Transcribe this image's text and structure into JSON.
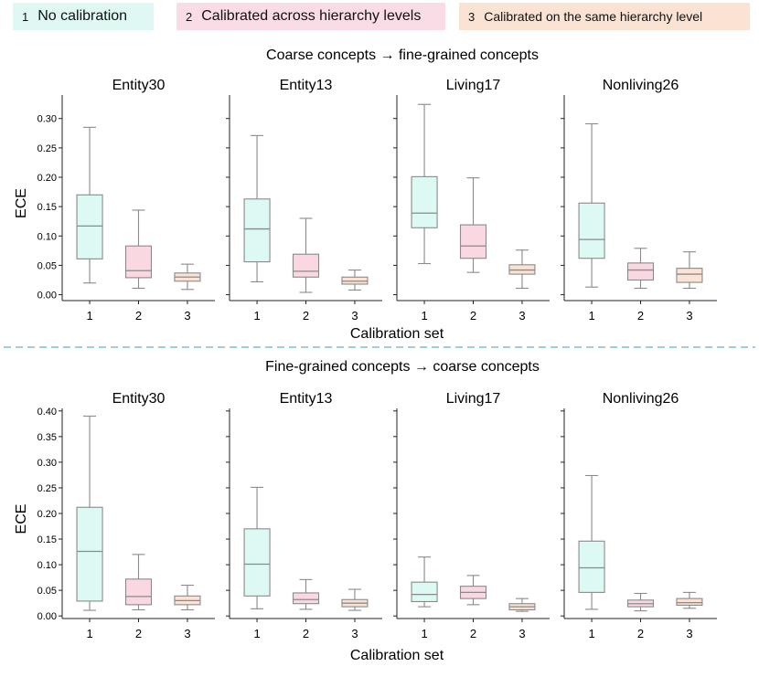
{
  "legend": [
    {
      "num": "1",
      "label": "No calibration",
      "fill": "#dff8f3"
    },
    {
      "num": "2",
      "label": "Calibrated across hierarchy levels",
      "fill": "#fadce6"
    },
    {
      "num": "3",
      "label": "Calibrated on the same hierarchy level",
      "fill": "#fbe3d3"
    }
  ],
  "colors": {
    "box_fills": [
      "#dcf9f3",
      "#fad8e2",
      "#fae3d4"
    ],
    "stroke": "#8a8a8a",
    "axis": "#222222",
    "divider": "#9ccfe0"
  },
  "shared": {
    "xlabel": "Calibration set",
    "ylabel": "ECE"
  },
  "chart_data": [
    {
      "type": "box",
      "section_title": "Coarse concepts → fine-grained concepts",
      "ylim": [
        -0.01,
        0.34
      ],
      "yticks": [
        "0.00",
        "0.05",
        "0.10",
        "0.15",
        "0.20",
        "0.25",
        "0.30"
      ],
      "categories": [
        "1",
        "2",
        "3"
      ],
      "panels": [
        {
          "title": "Entity30",
          "boxes": [
            {
              "min": 0.02,
              "q1": 0.061,
              "median": 0.117,
              "q3": 0.17,
              "max": 0.285
            },
            {
              "min": 0.011,
              "q1": 0.029,
              "median": 0.041,
              "q3": 0.083,
              "max": 0.144
            },
            {
              "min": 0.009,
              "q1": 0.023,
              "median": 0.03,
              "q3": 0.037,
              "max": 0.052
            }
          ]
        },
        {
          "title": "Entity13",
          "boxes": [
            {
              "min": 0.022,
              "q1": 0.056,
              "median": 0.112,
              "q3": 0.163,
              "max": 0.271
            },
            {
              "min": 0.004,
              "q1": 0.03,
              "median": 0.04,
              "q3": 0.069,
              "max": 0.13
            },
            {
              "min": 0.008,
              "q1": 0.018,
              "median": 0.023,
              "q3": 0.03,
              "max": 0.042
            }
          ]
        },
        {
          "title": "Living17",
          "boxes": [
            {
              "min": 0.053,
              "q1": 0.114,
              "median": 0.139,
              "q3": 0.201,
              "max": 0.324
            },
            {
              "min": 0.038,
              "q1": 0.062,
              "median": 0.083,
              "q3": 0.119,
              "max": 0.199
            },
            {
              "min": 0.011,
              "q1": 0.035,
              "median": 0.042,
              "q3": 0.051,
              "max": 0.076
            }
          ]
        },
        {
          "title": "Nonliving26",
          "boxes": [
            {
              "min": 0.013,
              "q1": 0.062,
              "median": 0.094,
              "q3": 0.156,
              "max": 0.291
            },
            {
              "min": 0.011,
              "q1": 0.025,
              "median": 0.042,
              "q3": 0.054,
              "max": 0.079
            },
            {
              "min": 0.011,
              "q1": 0.021,
              "median": 0.035,
              "q3": 0.045,
              "max": 0.073
            }
          ]
        }
      ]
    },
    {
      "type": "box",
      "section_title": "Fine-grained concepts → coarse concepts",
      "ylim": [
        -0.005,
        0.405
      ],
      "yticks": [
        "0.00",
        "0.05",
        "0.10",
        "0.15",
        "0.20",
        "0.25",
        "0.30",
        "0.35",
        "0.40"
      ],
      "categories": [
        "1",
        "2",
        "3"
      ],
      "panels": [
        {
          "title": "Entity30",
          "boxes": [
            {
              "min": 0.011,
              "q1": 0.029,
              "median": 0.126,
              "q3": 0.212,
              "max": 0.39
            },
            {
              "min": 0.012,
              "q1": 0.022,
              "median": 0.038,
              "q3": 0.072,
              "max": 0.12
            },
            {
              "min": 0.012,
              "q1": 0.022,
              "median": 0.03,
              "q3": 0.039,
              "max": 0.06
            }
          ]
        },
        {
          "title": "Entity13",
          "boxes": [
            {
              "min": 0.014,
              "q1": 0.039,
              "median": 0.101,
              "q3": 0.17,
              "max": 0.251
            },
            {
              "min": 0.013,
              "q1": 0.024,
              "median": 0.032,
              "q3": 0.045,
              "max": 0.071
            },
            {
              "min": 0.011,
              "q1": 0.018,
              "median": 0.025,
              "q3": 0.032,
              "max": 0.052
            }
          ]
        },
        {
          "title": "Living17",
          "boxes": [
            {
              "min": 0.018,
              "q1": 0.028,
              "median": 0.042,
              "q3": 0.066,
              "max": 0.115
            },
            {
              "min": 0.022,
              "q1": 0.034,
              "median": 0.046,
              "q3": 0.058,
              "max": 0.079
            },
            {
              "min": 0.009,
              "q1": 0.012,
              "median": 0.018,
              "q3": 0.024,
              "max": 0.034
            }
          ]
        },
        {
          "title": "Nonliving26",
          "boxes": [
            {
              "min": 0.013,
              "q1": 0.046,
              "median": 0.094,
              "q3": 0.146,
              "max": 0.274
            },
            {
              "min": 0.01,
              "q1": 0.018,
              "median": 0.024,
              "q3": 0.031,
              "max": 0.044
            },
            {
              "min": 0.015,
              "q1": 0.021,
              "median": 0.026,
              "q3": 0.034,
              "max": 0.046
            }
          ]
        }
      ]
    }
  ]
}
